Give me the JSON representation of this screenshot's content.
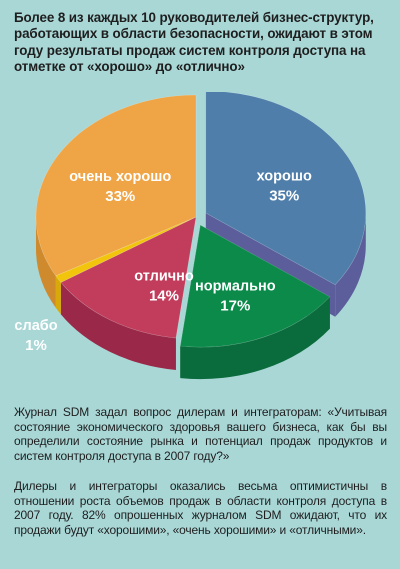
{
  "title": "Более 8 из каждых 10 руководителей бизнес-структур, работающих в области безопасности, ожидают в этом году результаты продаж систем контроля доступа на отметке от «хорошо» до «отлично»",
  "paragraphs": [
    "Журнал SDM задал вопрос дилерам и интеграторам: «Учитывая состояние экономического здоровья вашего бизнеса, как бы вы определили состояние рынка и потенциал продаж продуктов и систем контроля доступа в 2007 году?»",
    "Дилеры и интеграторы оказались весьма оптимистичны в отношении роста объемов продаж в области контроля доступа в 2007 году. 82% опрошенных журналом SDM ожидают, что их продажи будут «хорошими», «очень хорошими» и «отличными»."
  ],
  "chart_data": {
    "type": "pie",
    "title": "",
    "slices": [
      {
        "label": "хорошо",
        "value": 35,
        "value_label": "35%",
        "color": "#4f7eaa",
        "side_color": "#5b5e9a",
        "exploded": true
      },
      {
        "label": "нормально",
        "value": 17,
        "value_label": "17%",
        "color": "#0b8a4a",
        "side_color": "#0a6b3c",
        "exploded": true
      },
      {
        "label": "отлично",
        "value": 14,
        "value_label": "14%",
        "color": "#c23c5c",
        "side_color": "#9a2848",
        "exploded": false
      },
      {
        "label": "слабо",
        "value": 1,
        "value_label": "1%",
        "color": "#f2c40c",
        "side_color": "#d9a90a",
        "exploded": false
      },
      {
        "label": "очень хорошо",
        "value": 33,
        "value_label": "33%",
        "color": "#efa546",
        "side_color": "#d08a2e",
        "exploded": false
      }
    ]
  }
}
